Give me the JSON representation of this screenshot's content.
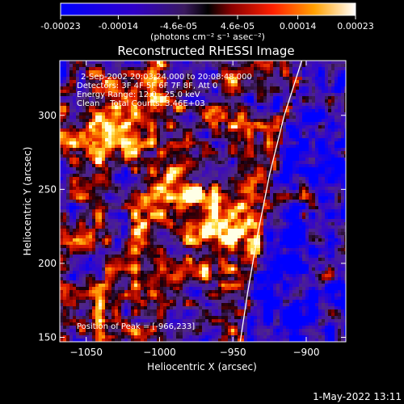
{
  "chart_data": {
    "type": "heatmap",
    "title": "Reconstructed RHESSI Image",
    "xlabel": "Heliocentric X (arcsec)",
    "ylabel": "Heliocentric Y (arcsec)",
    "xlim": [
      -1068,
      -873
    ],
    "ylim": [
      147,
      337
    ],
    "x_ticks": [
      -1050,
      -1000,
      -950,
      -900
    ],
    "x_tick_labels": [
      "−1050",
      "−1000",
      "−950",
      "−900"
    ],
    "y_ticks": [
      150,
      200,
      250,
      300
    ],
    "y_tick_labels": [
      "150",
      "200",
      "250",
      "300"
    ],
    "colorbar": {
      "range": [
        -0.00023,
        0.00023
      ],
      "ticks": [
        -0.00023,
        -0.00014,
        -4.6e-05,
        4.6e-05,
        0.00014,
        0.00023
      ],
      "tick_labels": [
        "-0.00023",
        "-0.00014",
        "-4.6e-05",
        "4.6e-05",
        "0.00014",
        "0.00023"
      ],
      "unit_label": "(photons cm⁻² s⁻¹ asec⁻²)"
    },
    "annotations": [
      "2-Sep-2002 20:03:24.000 to 20:08:48.000",
      "Detectors: 3F 4F 5F 6F 7F 8F, Att 0",
      "Energy Range: 12.0 - 25.0 keV",
      "Clean    Total Counts: 3.46E+03"
    ],
    "peak_label": "Position of Peak = [-966,233]",
    "peak": [
      -966,
      233
    ],
    "limb_curve": [
      [
        -903,
        337
      ],
      [
        -915,
        300
      ],
      [
        -925,
        260
      ],
      [
        -933,
        220
      ],
      [
        -940,
        180
      ],
      [
        -945,
        147
      ]
    ],
    "grid": false
  },
  "timestamp": "1-May-2022 13:11",
  "colors": {
    "background": "#000000",
    "text": "#ffffff",
    "limb": "#ffffff"
  }
}
